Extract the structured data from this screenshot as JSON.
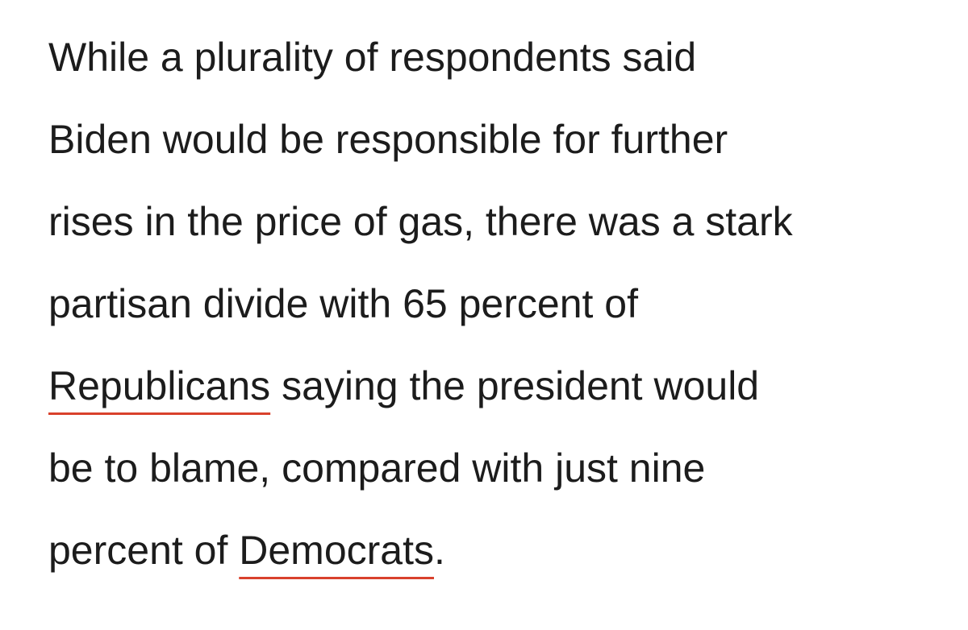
{
  "paragraph": {
    "lines": [
      [
        {
          "text": "While a plurality of respondents said"
        }
      ],
      [
        {
          "text": "Biden would be responsible for further"
        }
      ],
      [
        {
          "text": "rises in the price of gas, there was a stark"
        }
      ],
      [
        {
          "text": "partisan divide with 65 percent of"
        }
      ],
      [
        {
          "text": "Republicans",
          "link": true
        },
        {
          "text": " saying the president would"
        }
      ],
      [
        {
          "text": "be to blame, compared with just nine"
        }
      ],
      [
        {
          "text": "percent of "
        },
        {
          "text": "Democrats",
          "link": true
        },
        {
          "text": "."
        }
      ]
    ]
  }
}
